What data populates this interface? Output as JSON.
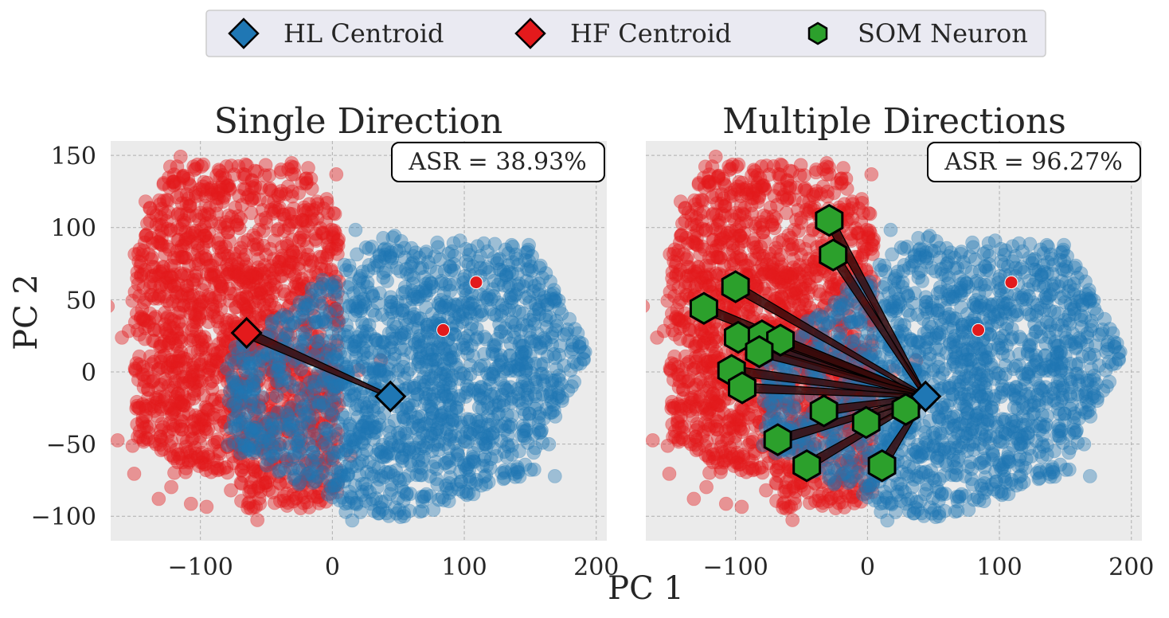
{
  "chart_data": {
    "type": "scatter",
    "xlabel": "PC 1",
    "ylabel": "PC 2",
    "xlim": [
      -168,
      208
    ],
    "ylim": [
      -117,
      160
    ],
    "xticks": [
      -100,
      0,
      100,
      200
    ],
    "yticks": [
      -100,
      -50,
      0,
      50,
      100,
      150
    ],
    "xtick_labels": [
      "−100",
      "0",
      "100",
      "200"
    ],
    "ytick_labels": [
      "−100",
      "−50",
      "0",
      "50",
      "100",
      "150"
    ],
    "grid": true,
    "legend": {
      "placement": "top-center",
      "entries": [
        {
          "label": "HL Centroid",
          "marker": "diamond",
          "color": "#1f77b4"
        },
        {
          "label": "HF Centroid",
          "marker": "diamond",
          "color": "#e31a1c"
        },
        {
          "label": "SOM Neuron",
          "marker": "hexagon",
          "color": "#2ca02c"
        }
      ]
    },
    "colors": {
      "hl": "#1f77b4",
      "hf": "#e31a1c",
      "som": "#2ca02c",
      "panel_bg": "#ebebeb"
    },
    "point_clouds": {
      "hf_region": {
        "x_range": [
          -150,
          100
        ],
        "y_range": [
          -95,
          148
        ],
        "approx_count": 2000
      },
      "hl_region": {
        "x_range": [
          -80,
          192
        ],
        "y_range": [
          -104,
          95
        ],
        "approx_count": 2000
      }
    },
    "outliers": [
      {
        "series": "HF",
        "x": 109,
        "y": 62
      },
      {
        "series": "HF",
        "x": 84,
        "y": 29
      }
    ],
    "hl_centroid": {
      "x": 44,
      "y": -17
    },
    "hf_centroid": {
      "x": -65,
      "y": 27
    },
    "panels": [
      {
        "title": "Single Direction",
        "asr": "ASR = 38.93%",
        "mode": "single"
      },
      {
        "title": "Multiple Directions",
        "asr": "ASR = 96.27%",
        "mode": "multiple",
        "som_neurons": [
          {
            "x": -29,
            "y": 105
          },
          {
            "x": -26,
            "y": 81
          },
          {
            "x": -100,
            "y": 59
          },
          {
            "x": -124,
            "y": 44
          },
          {
            "x": -98,
            "y": 24
          },
          {
            "x": -80,
            "y": 25
          },
          {
            "x": -66,
            "y": 22
          },
          {
            "x": -82,
            "y": 14
          },
          {
            "x": -103,
            "y": 1
          },
          {
            "x": -95,
            "y": -11
          },
          {
            "x": -33,
            "y": -27
          },
          {
            "x": 29,
            "y": -26
          },
          {
            "x": -1,
            "y": -35
          },
          {
            "x": -68,
            "y": -47
          },
          {
            "x": -46,
            "y": -65
          },
          {
            "x": 11,
            "y": -65
          }
        ]
      }
    ]
  }
}
